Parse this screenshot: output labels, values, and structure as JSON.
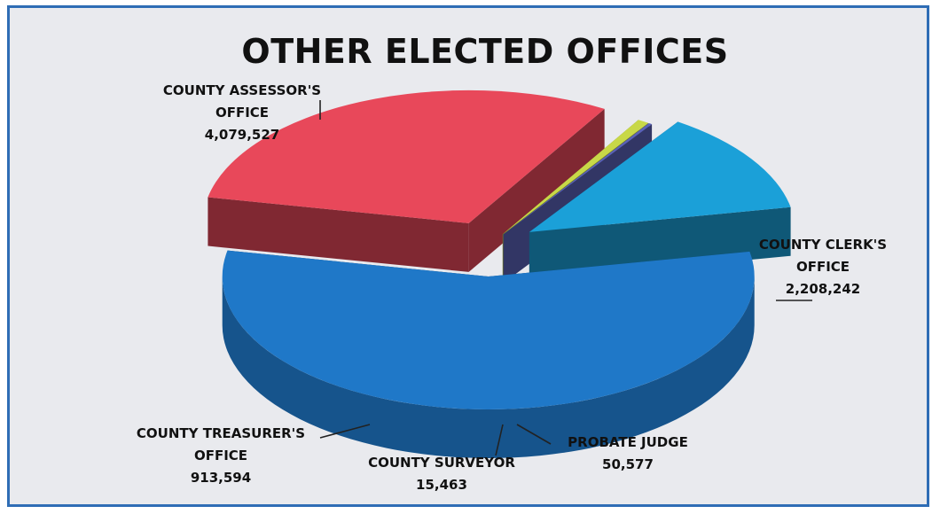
{
  "chart_data": {
    "type": "pie",
    "title": "OTHER ELECTED OFFICES",
    "style": "3d-exploded",
    "slices": [
      {
        "name": "COUNTY ASSESSOR'S OFFICE",
        "label_lines": [
          "COUNTY ASSESSOR'S",
          "OFFICE"
        ],
        "value": 4079527,
        "value_text": "4,079,527",
        "color": "#1f78c8"
      },
      {
        "name": "COUNTY CLERK'S OFFICE",
        "label_lines": [
          "COUNTY CLERK'S",
          "OFFICE"
        ],
        "value": 2208242,
        "value_text": "2,208,242",
        "color": "#e8485a"
      },
      {
        "name": "PROBATE JUDGE",
        "label_lines": [
          "PROBATE JUDGE"
        ],
        "value": 50577,
        "value_text": "50,577",
        "color": "#c8d848"
      },
      {
        "name": "COUNTY SURVEYOR",
        "label_lines": [
          "COUNTY SURVEYOR"
        ],
        "value": 15463,
        "value_text": "15,463",
        "color": "#5a62b8"
      },
      {
        "name": "COUNTY TREASURER'S OFFICE",
        "label_lines": [
          "COUNTY TREASURER'S",
          "OFFICE"
        ],
        "value": 913594,
        "value_text": "913,594",
        "color": "#1ba0d8"
      }
    ]
  }
}
